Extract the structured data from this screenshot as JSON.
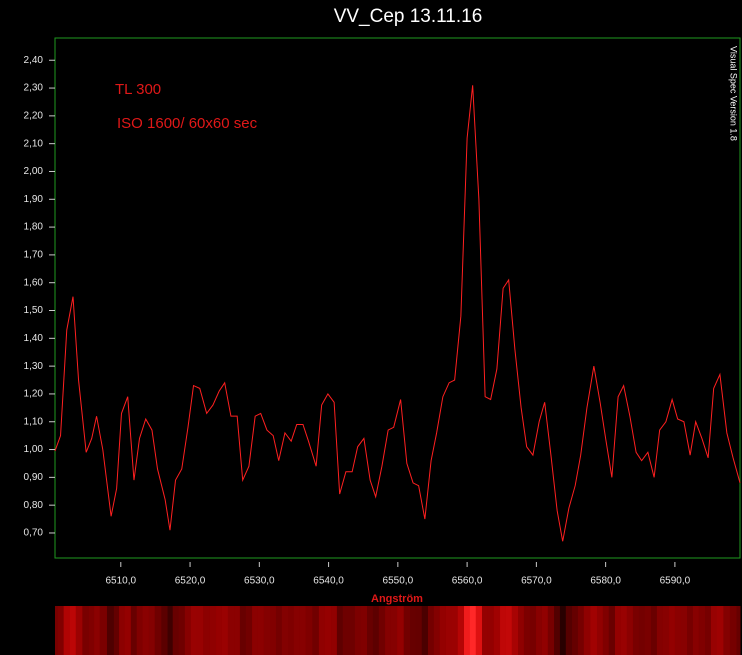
{
  "chart_data": {
    "type": "line",
    "title": "VV_Cep 13.11.16",
    "annotations": [
      "TL 300",
      "ISO 1600/ 60x60 sec"
    ],
    "watermark": "Visual Spec Version 1.8",
    "x_label": "Angström",
    "color": "#ff2020",
    "grid": false,
    "xlim": [
      6500.5,
      6599.4
    ],
    "ylim": [
      0.61,
      2.48
    ],
    "xticks": [
      {
        "value": 6510,
        "label": "6510,0"
      },
      {
        "value": 6520,
        "label": "6520,0"
      },
      {
        "value": 6530,
        "label": "6530,0"
      },
      {
        "value": 6540,
        "label": "6540,0"
      },
      {
        "value": 6550,
        "label": "6550,0"
      },
      {
        "value": 6560,
        "label": "6560,0"
      },
      {
        "value": 6570,
        "label": "6570,0"
      },
      {
        "value": 6580,
        "label": "6580,0"
      },
      {
        "value": 6590,
        "label": "6590,0"
      }
    ],
    "yticks": [
      {
        "value": 0.7,
        "label": "0,70"
      },
      {
        "value": 0.8,
        "label": "0,80"
      },
      {
        "value": 0.9,
        "label": "0,90"
      },
      {
        "value": 1.0,
        "label": "1,00"
      },
      {
        "value": 1.1,
        "label": "1,10"
      },
      {
        "value": 1.2,
        "label": "1,20"
      },
      {
        "value": 1.3,
        "label": "1,30"
      },
      {
        "value": 1.4,
        "label": "1,40"
      },
      {
        "value": 1.5,
        "label": "1,50"
      },
      {
        "value": 1.6,
        "label": "1,60"
      },
      {
        "value": 1.7,
        "label": "1,70"
      },
      {
        "value": 1.8,
        "label": "1,80"
      },
      {
        "value": 1.9,
        "label": "1,90"
      },
      {
        "value": 2.0,
        "label": "2,00"
      },
      {
        "value": 2.1,
        "label": "2,10"
      },
      {
        "value": 2.2,
        "label": "2,20"
      },
      {
        "value": 2.3,
        "label": "2,30"
      },
      {
        "value": 2.4,
        "label": "2,40"
      }
    ],
    "x": [
      6500.5,
      6501.3,
      6502.2,
      6503.1,
      6503.9,
      6505.0,
      6505.8,
      6506.5,
      6507.4,
      6508.6,
      6509.4,
      6510.1,
      6511.0,
      6511.9,
      6512.7,
      6513.6,
      6514.5,
      6515.3,
      6516.4,
      6517.1,
      6517.9,
      6518.8,
      6519.7,
      6520.5,
      6521.4,
      6522.4,
      6523.3,
      6524.2,
      6525.0,
      6525.9,
      6526.8,
      6527.6,
      6528.5,
      6529.4,
      6530.2,
      6531.1,
      6532.0,
      6532.8,
      6533.7,
      6534.6,
      6535.4,
      6536.3,
      6537.1,
      6538.2,
      6539.0,
      6539.9,
      6540.8,
      6541.6,
      6542.5,
      6543.4,
      6544.2,
      6545.1,
      6546.0,
      6546.8,
      6547.7,
      6548.6,
      6549.4,
      6550.4,
      6551.3,
      6552.2,
      6553.0,
      6553.9,
      6554.8,
      6555.6,
      6556.5,
      6557.4,
      6558.2,
      6559.1,
      6560.0,
      6560.8,
      6561.7,
      6562.6,
      6563.4,
      6564.3,
      6565.2,
      6566.0,
      6566.9,
      6567.8,
      6568.6,
      6569.5,
      6570.4,
      6571.2,
      6572.1,
      6573.0,
      6573.8,
      6574.7,
      6575.6,
      6576.4,
      6577.3,
      6578.3,
      6579.2,
      6580.0,
      6580.9,
      6581.8,
      6582.6,
      6583.5,
      6584.4,
      6585.2,
      6586.1,
      6587.0,
      6587.8,
      6588.7,
      6589.6,
      6590.4,
      6591.3,
      6592.2,
      6593.0,
      6593.9,
      6594.8,
      6595.6,
      6596.5,
      6597.5,
      6598.4,
      6599.4
    ],
    "values": [
      0.995,
      1.05,
      1.43,
      1.55,
      1.25,
      0.99,
      1.04,
      1.12,
      1.0,
      0.76,
      0.86,
      1.13,
      1.19,
      0.89,
      1.04,
      1.11,
      1.07,
      0.93,
      0.82,
      0.71,
      0.89,
      0.93,
      1.08,
      1.23,
      1.22,
      1.13,
      1.16,
      1.21,
      1.24,
      1.12,
      1.12,
      0.89,
      0.94,
      1.12,
      1.13,
      1.07,
      1.05,
      0.96,
      1.06,
      1.03,
      1.09,
      1.09,
      1.03,
      0.94,
      1.16,
      1.2,
      1.17,
      0.84,
      0.92,
      0.92,
      1.01,
      1.04,
      0.89,
      0.83,
      0.94,
      1.07,
      1.08,
      1.18,
      0.95,
      0.88,
      0.87,
      0.75,
      0.96,
      1.06,
      1.19,
      1.24,
      1.25,
      1.48,
      2.12,
      2.31,
      1.9,
      1.19,
      1.18,
      1.29,
      1.58,
      1.61,
      1.36,
      1.15,
      1.01,
      0.98,
      1.1,
      1.17,
      0.98,
      0.78,
      0.67,
      0.79,
      0.87,
      0.98,
      1.15,
      1.3,
      1.17,
      1.04,
      0.9,
      1.19,
      1.23,
      1.12,
      0.99,
      0.96,
      0.99,
      0.9,
      1.07,
      1.1,
      1.18,
      1.11,
      1.1,
      0.98,
      1.1,
      1.04,
      0.97,
      1.22,
      1.27,
      1.06,
      0.97,
      0.88
    ]
  }
}
